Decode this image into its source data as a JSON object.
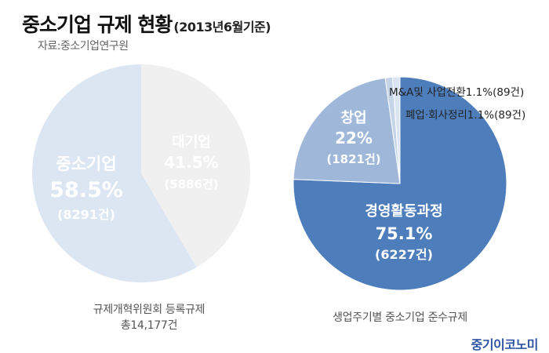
{
  "title": "중소기업 규제 현황",
  "title_suffix": "(2013년6월기준)",
  "source": "자료:중소기업연구원",
  "brand": "중기이코노미",
  "chart_data": [
    {
      "type": "pie",
      "caption_line1": "규제개혁위원회 등록규제",
      "caption_line2": "총14,177건",
      "slices": [
        {
          "name": "중소기업",
          "percent_label": "58.5%",
          "count_label": "(8291건)",
          "value": 58.5,
          "color": "#dce6f3",
          "text_color": "#ffffff"
        },
        {
          "name": "대기업",
          "percent_label": "41.5%",
          "count_label": "(5886건)",
          "value": 41.5,
          "color": "#f0f0f0",
          "text_color": "#ffffff"
        }
      ]
    },
    {
      "type": "pie",
      "caption": "생업주기별 중소기업 준수규제",
      "slices": [
        {
          "name": "경영활동과정",
          "percent_label": "75.1%",
          "count_label": "(6227건)",
          "value": 75.1,
          "color": "#4e7dbc",
          "text_color": "#ffffff"
        },
        {
          "name": "창업",
          "percent_label": "22%",
          "count_label": "(1821건)",
          "value": 22,
          "color": "#9fb8da",
          "text_color": "#ffffff"
        },
        {
          "name": "M&A및 사업전환",
          "percent_label": "1.1%",
          "count_label": "(89건)",
          "value": 1.1,
          "color": "#c6d4e8",
          "text_color": "#222222"
        },
        {
          "name": "폐업·회사정리",
          "percent_label": "1.1%",
          "count_label": "(89건)",
          "value": 1.1,
          "color": "#dbe4f1",
          "text_color": "#222222"
        }
      ]
    }
  ]
}
